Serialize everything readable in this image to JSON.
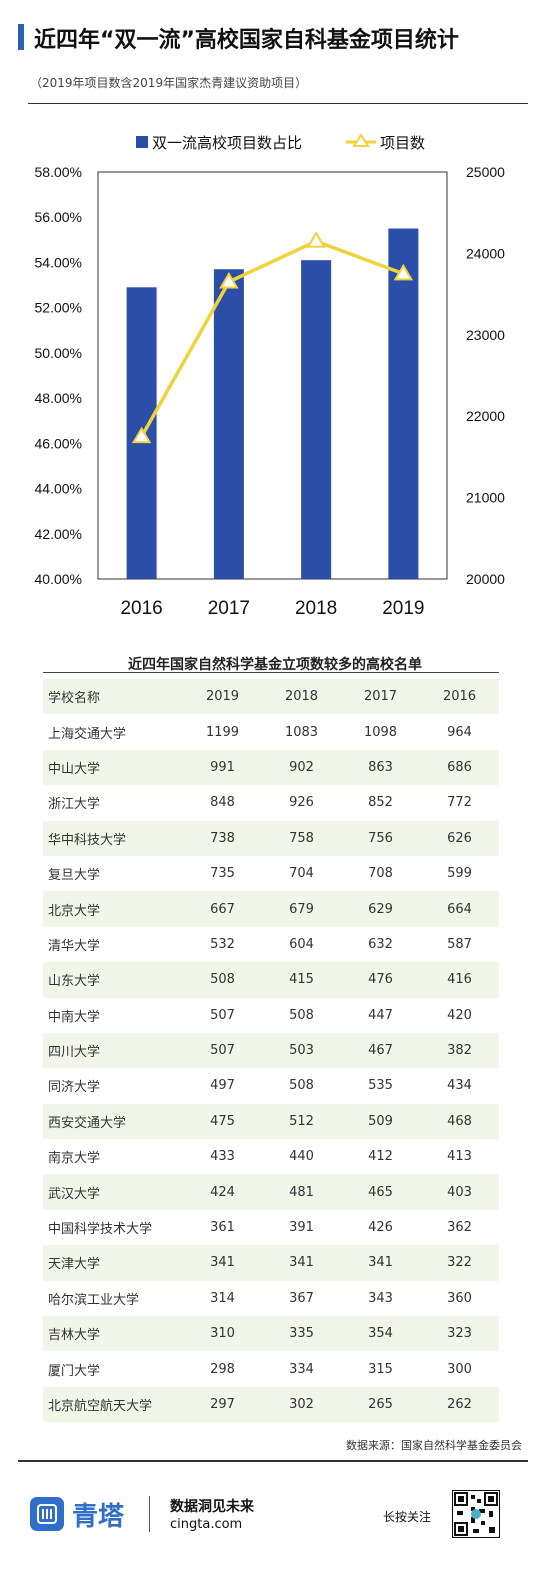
{
  "header": {
    "title": "近四年“双一流”高校国家自科基金项目统计",
    "subtitle": "（2019年项目数含2019年国家杰青建议资助项目）"
  },
  "chart_data": {
    "type": "bar",
    "categories": [
      "2016",
      "2017",
      "2018",
      "2019"
    ],
    "series": [
      {
        "name": "双一流高校项目数占比",
        "chart_type": "bar",
        "axis": "left",
        "values": [
          52.9,
          53.7,
          54.1,
          55.5
        ]
      },
      {
        "name": "项目数",
        "chart_type": "line",
        "axis": "right",
        "values": [
          21750,
          23650,
          24150,
          23750
        ]
      }
    ],
    "y_left": {
      "min": 40,
      "max": 58,
      "step": 2,
      "ticks": [
        "40.00%",
        "42.00%",
        "44.00%",
        "46.00%",
        "48.00%",
        "50.00%",
        "52.00%",
        "54.00%",
        "56.00%",
        "58.00%"
      ]
    },
    "y_right": {
      "min": 20000,
      "max": 25000,
      "step": 1000,
      "ticks": [
        "20000",
        "21000",
        "22000",
        "23000",
        "24000",
        "25000"
      ]
    },
    "legend_position": "top",
    "grid": false,
    "colors": {
      "bar": "#2b4ea8",
      "line": "#f0d23a"
    }
  },
  "table": {
    "title": "近四年国家自然科学基金立项数较多的高校名单",
    "headers": [
      "学校名称",
      "2019",
      "2018",
      "2017",
      "2016"
    ],
    "rows": [
      [
        "上海交通大学",
        "1199",
        "1083",
        "1098",
        "964"
      ],
      [
        "中山大学",
        "991",
        "902",
        "863",
        "686"
      ],
      [
        "浙江大学",
        "848",
        "926",
        "852",
        "772"
      ],
      [
        "华中科技大学",
        "738",
        "758",
        "756",
        "626"
      ],
      [
        "复旦大学",
        "735",
        "704",
        "708",
        "599"
      ],
      [
        "北京大学",
        "667",
        "679",
        "629",
        "664"
      ],
      [
        "清华大学",
        "532",
        "604",
        "632",
        "587"
      ],
      [
        "山东大学",
        "508",
        "415",
        "476",
        "416"
      ],
      [
        "中南大学",
        "507",
        "508",
        "447",
        "420"
      ],
      [
        "四川大学",
        "507",
        "503",
        "467",
        "382"
      ],
      [
        "同济大学",
        "497",
        "508",
        "535",
        "434"
      ],
      [
        "西安交通大学",
        "475",
        "512",
        "509",
        "468"
      ],
      [
        "南京大学",
        "433",
        "440",
        "412",
        "413"
      ],
      [
        "武汉大学",
        "424",
        "481",
        "465",
        "403"
      ],
      [
        "中国科学技术大学",
        "361",
        "391",
        "426",
        "362"
      ],
      [
        "天津大学",
        "341",
        "341",
        "341",
        "322"
      ],
      [
        "哈尔滨工业大学",
        "314",
        "367",
        "343",
        "360"
      ],
      [
        "吉林大学",
        "310",
        "335",
        "354",
        "323"
      ],
      [
        "厦门大学",
        "298",
        "334",
        "315",
        "300"
      ],
      [
        "北京航空航天大学",
        "297",
        "302",
        "265",
        "262"
      ]
    ]
  },
  "source": "数据来源：国家自然科学基金委员会",
  "footer": {
    "brand": "青塔",
    "slogan": "数据洞见未来",
    "site": "cingta.com",
    "press_hint": "长按关注",
    "logo_icon": "cingta-logo-icon",
    "qr_icon": "qr-code-icon"
  }
}
